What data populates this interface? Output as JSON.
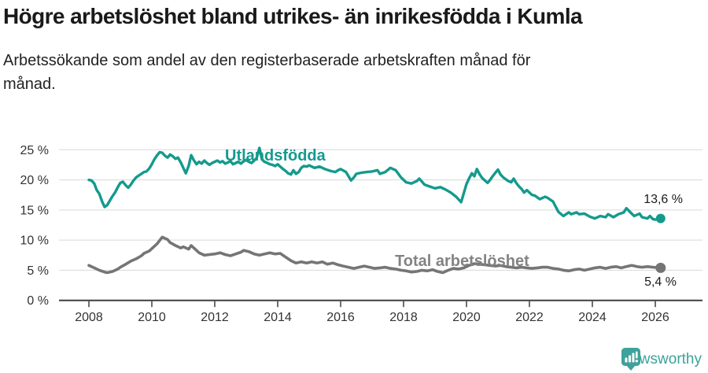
{
  "header": {
    "title": "Högre arbetslöshet bland utrikes- än inrikesfödda i Kumla",
    "subtitle": "Arbetssökande som andel av den registerbaserade arbetskraften månad för månad."
  },
  "chart_data": {
    "type": "line",
    "title": "Högre arbetslöshet bland utrikes- än inrikesfödda i Kumla",
    "subtitle": "Arbetssökande som andel av den registerbaserade arbetskraften månad för månad.",
    "xlabel": "",
    "ylabel": "",
    "grid": true,
    "legend_position": "inline-labels",
    "xlim": [
      2007.05,
      2027.5
    ],
    "ylim": [
      0,
      25
    ],
    "x_axis": {
      "ticks": [
        2008,
        2010,
        2012,
        2014,
        2016,
        2018,
        2020,
        2022,
        2024,
        2026
      ],
      "tick_labels": [
        "2008",
        "2010",
        "2012",
        "2014",
        "2016",
        "2018",
        "2020",
        "2022",
        "2024",
        "2026"
      ]
    },
    "y_axis": {
      "ticks": [
        0,
        5,
        10,
        15,
        20,
        25
      ],
      "tick_labels": [
        "0 %",
        "5 %",
        "10 %",
        "15 %",
        "20 %",
        "25 %"
      ]
    },
    "series": [
      {
        "name": "Utlandsfödda",
        "color": "#149a8d",
        "end_label": "13,6 %",
        "end_value": 13.6,
        "points": [
          [
            2008.0,
            20.0
          ],
          [
            2008.08,
            19.9
          ],
          [
            2008.17,
            19.4
          ],
          [
            2008.25,
            18.3
          ],
          [
            2008.33,
            17.7
          ],
          [
            2008.42,
            16.4
          ],
          [
            2008.5,
            15.5
          ],
          [
            2008.58,
            15.8
          ],
          [
            2008.67,
            16.6
          ],
          [
            2008.75,
            17.3
          ],
          [
            2008.83,
            17.9
          ],
          [
            2008.92,
            18.8
          ],
          [
            2009.0,
            19.5
          ],
          [
            2009.08,
            19.7
          ],
          [
            2009.17,
            19.1
          ],
          [
            2009.25,
            18.7
          ],
          [
            2009.33,
            19.2
          ],
          [
            2009.42,
            19.9
          ],
          [
            2009.5,
            20.4
          ],
          [
            2009.58,
            20.7
          ],
          [
            2009.67,
            21.0
          ],
          [
            2009.75,
            21.3
          ],
          [
            2009.83,
            21.4
          ],
          [
            2009.92,
            21.9
          ],
          [
            2010.0,
            22.6
          ],
          [
            2010.08,
            23.4
          ],
          [
            2010.17,
            24.1
          ],
          [
            2010.25,
            24.6
          ],
          [
            2010.33,
            24.5
          ],
          [
            2010.42,
            24.0
          ],
          [
            2010.5,
            23.7
          ],
          [
            2010.58,
            24.2
          ],
          [
            2010.67,
            23.9
          ],
          [
            2010.75,
            23.5
          ],
          [
            2010.83,
            23.7
          ],
          [
            2010.92,
            22.9
          ],
          [
            2011.0,
            22.0
          ],
          [
            2011.08,
            21.1
          ],
          [
            2011.17,
            22.3
          ],
          [
            2011.25,
            24.1
          ],
          [
            2011.33,
            23.3
          ],
          [
            2011.42,
            22.6
          ],
          [
            2011.5,
            23.0
          ],
          [
            2011.58,
            22.7
          ],
          [
            2011.67,
            23.2
          ],
          [
            2011.75,
            22.8
          ],
          [
            2011.83,
            22.5
          ],
          [
            2011.92,
            22.8
          ],
          [
            2012.0,
            23.0
          ],
          [
            2012.08,
            23.2
          ],
          [
            2012.17,
            22.9
          ],
          [
            2012.25,
            23.1
          ],
          [
            2012.33,
            22.7
          ],
          [
            2012.42,
            22.9
          ],
          [
            2012.5,
            23.1
          ],
          [
            2012.58,
            22.6
          ],
          [
            2012.67,
            22.8
          ],
          [
            2012.75,
            23.0
          ],
          [
            2012.83,
            22.7
          ],
          [
            2012.92,
            23.1
          ],
          [
            2013.0,
            23.3
          ],
          [
            2013.08,
            23.0
          ],
          [
            2013.17,
            22.8
          ],
          [
            2013.25,
            23.2
          ],
          [
            2013.33,
            23.6
          ],
          [
            2013.42,
            25.3
          ],
          [
            2013.5,
            23.4
          ],
          [
            2013.58,
            23.0
          ],
          [
            2013.67,
            22.8
          ],
          [
            2013.75,
            22.6
          ],
          [
            2013.83,
            22.5
          ],
          [
            2013.92,
            22.3
          ],
          [
            2014.0,
            22.6
          ],
          [
            2014.08,
            22.2
          ],
          [
            2014.17,
            21.8
          ],
          [
            2014.25,
            21.5
          ],
          [
            2014.33,
            21.1
          ],
          [
            2014.42,
            20.9
          ],
          [
            2014.5,
            21.6
          ],
          [
            2014.58,
            21.0
          ],
          [
            2014.67,
            21.3
          ],
          [
            2014.75,
            22.0
          ],
          [
            2014.83,
            22.3
          ],
          [
            2014.92,
            22.2
          ],
          [
            2015.0,
            22.4
          ],
          [
            2015.17,
            22.0
          ],
          [
            2015.33,
            22.2
          ],
          [
            2015.5,
            21.8
          ],
          [
            2015.67,
            21.5
          ],
          [
            2015.83,
            21.3
          ],
          [
            2015.92,
            21.6
          ],
          [
            2016.0,
            21.8
          ],
          [
            2016.17,
            21.3
          ],
          [
            2016.33,
            19.9
          ],
          [
            2016.42,
            20.4
          ],
          [
            2016.5,
            21.0
          ],
          [
            2016.67,
            21.2
          ],
          [
            2016.83,
            21.3
          ],
          [
            2017.0,
            21.4
          ],
          [
            2017.17,
            21.6
          ],
          [
            2017.25,
            21.0
          ],
          [
            2017.42,
            21.3
          ],
          [
            2017.58,
            22.0
          ],
          [
            2017.75,
            21.6
          ],
          [
            2017.92,
            20.4
          ],
          [
            2018.08,
            19.6
          ],
          [
            2018.25,
            19.4
          ],
          [
            2018.42,
            19.8
          ],
          [
            2018.5,
            20.2
          ],
          [
            2018.67,
            19.2
          ],
          [
            2018.83,
            18.9
          ],
          [
            2019.0,
            18.6
          ],
          [
            2019.17,
            18.8
          ],
          [
            2019.33,
            18.4
          ],
          [
            2019.5,
            17.9
          ],
          [
            2019.67,
            17.2
          ],
          [
            2019.83,
            16.3
          ],
          [
            2019.92,
            17.9
          ],
          [
            2020.0,
            19.3
          ],
          [
            2020.08,
            20.2
          ],
          [
            2020.17,
            21.1
          ],
          [
            2020.25,
            20.6
          ],
          [
            2020.33,
            21.8
          ],
          [
            2020.42,
            20.9
          ],
          [
            2020.5,
            20.3
          ],
          [
            2020.67,
            19.5
          ],
          [
            2020.75,
            20.0
          ],
          [
            2020.83,
            20.6
          ],
          [
            2020.92,
            21.2
          ],
          [
            2021.0,
            21.7
          ],
          [
            2021.08,
            20.9
          ],
          [
            2021.17,
            20.4
          ],
          [
            2021.33,
            19.8
          ],
          [
            2021.42,
            19.6
          ],
          [
            2021.5,
            20.2
          ],
          [
            2021.58,
            19.5
          ],
          [
            2021.67,
            18.9
          ],
          [
            2021.75,
            18.5
          ],
          [
            2021.83,
            17.9
          ],
          [
            2021.92,
            18.3
          ],
          [
            2022.08,
            17.5
          ],
          [
            2022.17,
            17.4
          ],
          [
            2022.33,
            16.8
          ],
          [
            2022.5,
            17.2
          ],
          [
            2022.58,
            17.0
          ],
          [
            2022.75,
            16.4
          ],
          [
            2022.92,
            14.7
          ],
          [
            2023.08,
            14.0
          ],
          [
            2023.25,
            14.6
          ],
          [
            2023.33,
            14.3
          ],
          [
            2023.5,
            14.6
          ],
          [
            2023.58,
            14.3
          ],
          [
            2023.75,
            14.4
          ],
          [
            2023.92,
            13.9
          ],
          [
            2024.08,
            13.6
          ],
          [
            2024.25,
            14.0
          ],
          [
            2024.42,
            13.8
          ],
          [
            2024.5,
            14.3
          ],
          [
            2024.67,
            13.8
          ],
          [
            2024.83,
            14.3
          ],
          [
            2025.0,
            14.6
          ],
          [
            2025.08,
            15.3
          ],
          [
            2025.25,
            14.4
          ],
          [
            2025.33,
            14.0
          ],
          [
            2025.5,
            14.4
          ],
          [
            2025.58,
            13.8
          ],
          [
            2025.75,
            13.6
          ],
          [
            2025.83,
            14.0
          ],
          [
            2025.92,
            13.5
          ],
          [
            2026.0,
            13.4
          ],
          [
            2026.17,
            13.6
          ]
        ]
      },
      {
        "name": "Total arbetslöshet",
        "color": "#757575",
        "end_label": "5,4 %",
        "end_value": 5.4,
        "points": [
          [
            2008.0,
            5.8
          ],
          [
            2008.17,
            5.4
          ],
          [
            2008.33,
            5.0
          ],
          [
            2008.5,
            4.7
          ],
          [
            2008.58,
            4.6
          ],
          [
            2008.75,
            4.8
          ],
          [
            2008.92,
            5.2
          ],
          [
            2009.0,
            5.5
          ],
          [
            2009.17,
            6.0
          ],
          [
            2009.33,
            6.5
          ],
          [
            2009.5,
            6.9
          ],
          [
            2009.67,
            7.4
          ],
          [
            2009.75,
            7.8
          ],
          [
            2009.92,
            8.2
          ],
          [
            2010.0,
            8.6
          ],
          [
            2010.17,
            9.4
          ],
          [
            2010.33,
            10.5
          ],
          [
            2010.5,
            10.1
          ],
          [
            2010.58,
            9.6
          ],
          [
            2010.75,
            9.1
          ],
          [
            2010.92,
            8.7
          ],
          [
            2011.0,
            8.9
          ],
          [
            2011.17,
            8.5
          ],
          [
            2011.25,
            9.1
          ],
          [
            2011.42,
            8.3
          ],
          [
            2011.5,
            7.9
          ],
          [
            2011.67,
            7.5
          ],
          [
            2011.83,
            7.6
          ],
          [
            2012.0,
            7.7
          ],
          [
            2012.17,
            7.9
          ],
          [
            2012.33,
            7.6
          ],
          [
            2012.5,
            7.4
          ],
          [
            2012.67,
            7.7
          ],
          [
            2012.83,
            8.0
          ],
          [
            2012.92,
            8.3
          ],
          [
            2013.08,
            8.1
          ],
          [
            2013.25,
            7.7
          ],
          [
            2013.42,
            7.5
          ],
          [
            2013.58,
            7.7
          ],
          [
            2013.75,
            7.9
          ],
          [
            2013.92,
            7.7
          ],
          [
            2014.08,
            7.8
          ],
          [
            2014.25,
            7.2
          ],
          [
            2014.42,
            6.6
          ],
          [
            2014.58,
            6.2
          ],
          [
            2014.75,
            6.4
          ],
          [
            2014.92,
            6.2
          ],
          [
            2015.08,
            6.4
          ],
          [
            2015.25,
            6.2
          ],
          [
            2015.42,
            6.4
          ],
          [
            2015.58,
            6.0
          ],
          [
            2015.75,
            6.2
          ],
          [
            2015.92,
            5.9
          ],
          [
            2016.08,
            5.7
          ],
          [
            2016.25,
            5.5
          ],
          [
            2016.42,
            5.3
          ],
          [
            2016.58,
            5.5
          ],
          [
            2016.75,
            5.7
          ],
          [
            2016.92,
            5.5
          ],
          [
            2017.08,
            5.3
          ],
          [
            2017.25,
            5.4
          ],
          [
            2017.42,
            5.5
          ],
          [
            2017.58,
            5.3
          ],
          [
            2017.75,
            5.2
          ],
          [
            2017.92,
            5.0
          ],
          [
            2018.08,
            4.9
          ],
          [
            2018.25,
            4.7
          ],
          [
            2018.42,
            4.8
          ],
          [
            2018.58,
            5.0
          ],
          [
            2018.75,
            4.9
          ],
          [
            2018.92,
            5.1
          ],
          [
            2019.08,
            4.8
          ],
          [
            2019.25,
            4.6
          ],
          [
            2019.42,
            5.0
          ],
          [
            2019.58,
            5.3
          ],
          [
            2019.75,
            5.2
          ],
          [
            2019.92,
            5.4
          ],
          [
            2020.08,
            5.8
          ],
          [
            2020.25,
            6.1
          ],
          [
            2020.42,
            6.0
          ],
          [
            2020.58,
            5.9
          ],
          [
            2020.75,
            5.8
          ],
          [
            2020.92,
            5.7
          ],
          [
            2021.08,
            5.8
          ],
          [
            2021.25,
            5.6
          ],
          [
            2021.42,
            5.5
          ],
          [
            2021.58,
            5.4
          ],
          [
            2021.75,
            5.5
          ],
          [
            2021.92,
            5.4
          ],
          [
            2022.08,
            5.3
          ],
          [
            2022.25,
            5.4
          ],
          [
            2022.42,
            5.5
          ],
          [
            2022.58,
            5.5
          ],
          [
            2022.75,
            5.3
          ],
          [
            2022.92,
            5.2
          ],
          [
            2023.08,
            5.0
          ],
          [
            2023.25,
            4.9
          ],
          [
            2023.42,
            5.1
          ],
          [
            2023.58,
            5.2
          ],
          [
            2023.75,
            5.0
          ],
          [
            2023.92,
            5.2
          ],
          [
            2024.08,
            5.4
          ],
          [
            2024.25,
            5.5
          ],
          [
            2024.42,
            5.3
          ],
          [
            2024.58,
            5.5
          ],
          [
            2024.75,
            5.6
          ],
          [
            2024.92,
            5.4
          ],
          [
            2025.08,
            5.6
          ],
          [
            2025.25,
            5.8
          ],
          [
            2025.42,
            5.6
          ],
          [
            2025.58,
            5.5
          ],
          [
            2025.75,
            5.6
          ],
          [
            2025.92,
            5.5
          ],
          [
            2026.17,
            5.4
          ]
        ]
      }
    ]
  },
  "footer": {
    "brand": "Newsworthy"
  },
  "colors": {
    "accent_teal": "#149a8d",
    "series_gray": "#757575",
    "logo_teal": "#3da29a",
    "grid": "#d9d9d9",
    "axis": "#3f3f3f",
    "text": "#1a1a1a"
  }
}
